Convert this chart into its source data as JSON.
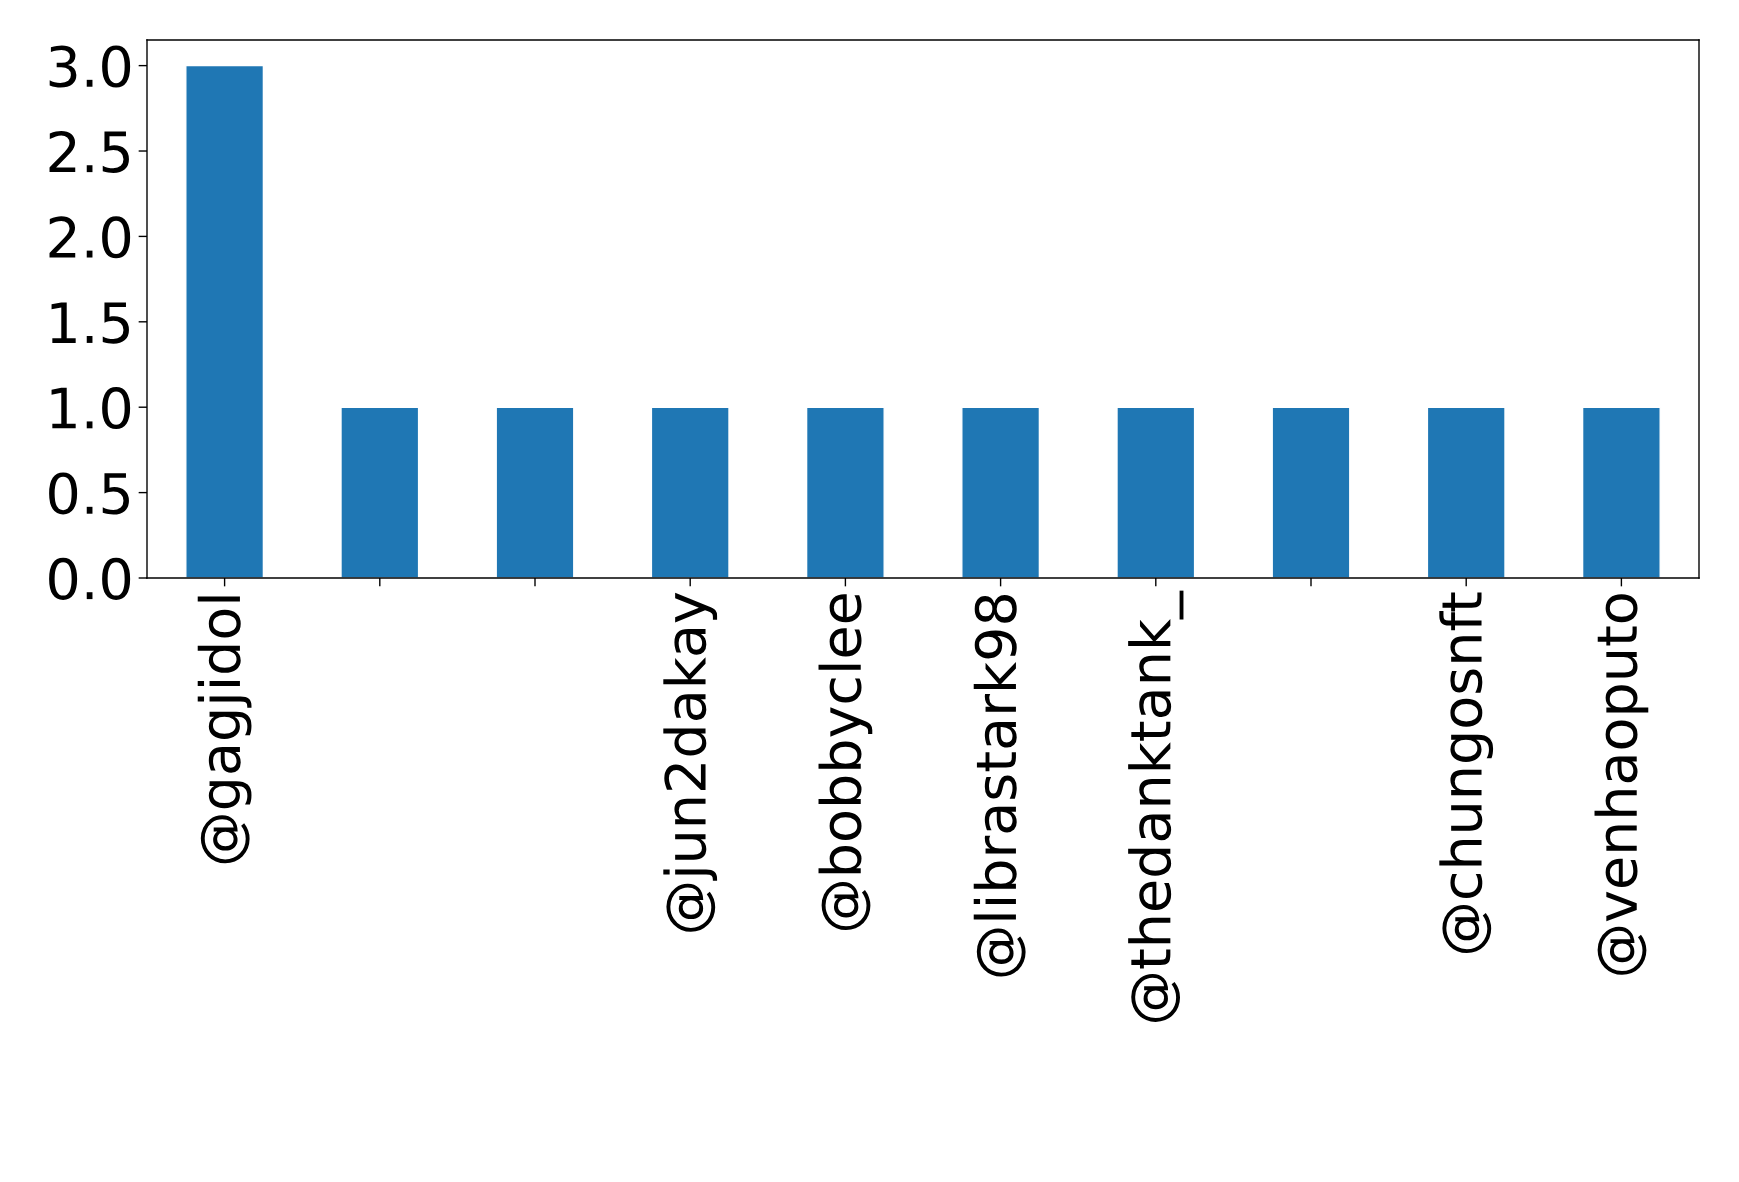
{
  "chart_data": {
    "type": "bar",
    "categories": [
      "@gagjidol",
      null,
      null,
      "@jun2dakay",
      "@bobbyclee",
      "@librastark98",
      "@thedanktank_",
      null,
      "@chungosnft",
      "@venhaoputo"
    ],
    "values": [
      3,
      1,
      1,
      1,
      1,
      1,
      1,
      1,
      1,
      1
    ],
    "color": "#1f77b4",
    "ylim": [
      0,
      3.15
    ],
    "yticks": [
      {
        "value": 0,
        "label": "0.0"
      },
      {
        "value": 0.5,
        "label": "0.5"
      },
      {
        "value": 1,
        "label": "1.0"
      },
      {
        "value": 1.5,
        "label": "1.5"
      },
      {
        "value": 2,
        "label": "2.0"
      },
      {
        "value": 2.5,
        "label": "2.5"
      },
      {
        "value": 3,
        "label": "3.0"
      }
    ],
    "grid": false,
    "legend": false
  }
}
